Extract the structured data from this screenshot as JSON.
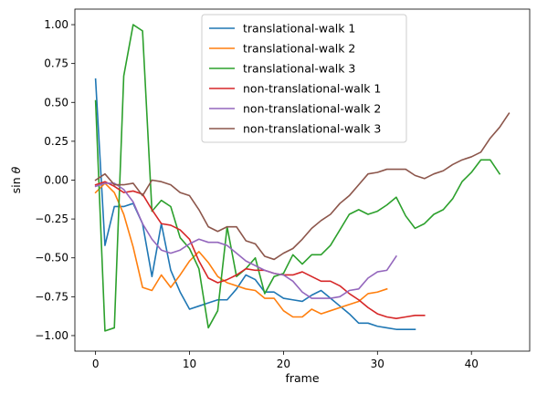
{
  "chart_data": {
    "type": "line",
    "title": "",
    "xlabel": "frame",
    "ylabel_main": "sin",
    "ylabel_symbol": "θ",
    "xlim": [
      -2.2,
      46.2
    ],
    "ylim": [
      -1.1,
      1.1
    ],
    "xticks": [
      0,
      10,
      20,
      30,
      40
    ],
    "yticks": [
      -1.0,
      -0.75,
      -0.5,
      -0.25,
      0.0,
      0.25,
      0.5,
      0.75,
      1.0
    ],
    "ytick_labels": [
      "−1.00",
      "−0.75",
      "−0.50",
      "−0.25",
      "0.00",
      "0.25",
      "0.50",
      "0.75",
      "1.00"
    ],
    "grid": false,
    "legend_position": "top-center",
    "series": [
      {
        "name": "translational-walk 1",
        "color": "#1f77b4",
        "x": [
          0,
          1,
          2,
          3,
          4,
          5,
          6,
          7,
          8,
          9,
          10,
          11,
          12,
          13,
          14,
          15,
          16,
          17,
          18,
          19,
          20,
          21,
          22,
          23,
          24,
          25,
          26,
          27,
          28,
          29,
          30,
          31,
          32,
          33,
          34
        ],
        "y": [
          0.65,
          -0.42,
          -0.17,
          -0.17,
          -0.15,
          -0.28,
          -0.62,
          -0.28,
          -0.58,
          -0.72,
          -0.83,
          -0.81,
          -0.79,
          -0.77,
          -0.77,
          -0.7,
          -0.61,
          -0.64,
          -0.72,
          -0.72,
          -0.76,
          -0.77,
          -0.78,
          -0.74,
          -0.71,
          -0.76,
          -0.81,
          -0.86,
          -0.92,
          -0.92,
          -0.94,
          -0.95,
          -0.96,
          -0.96,
          -0.96
        ]
      },
      {
        "name": "translational-walk 2",
        "color": "#ff7f0e",
        "x": [
          0,
          1,
          2,
          3,
          4,
          5,
          6,
          7,
          8,
          9,
          10,
          11,
          12,
          13,
          14,
          15,
          16,
          17,
          18,
          19,
          20,
          21,
          22,
          23,
          24,
          25,
          26,
          27,
          28,
          29,
          30,
          31
        ],
        "y": [
          -0.08,
          -0.02,
          -0.08,
          -0.22,
          -0.43,
          -0.69,
          -0.71,
          -0.61,
          -0.69,
          -0.61,
          -0.52,
          -0.46,
          -0.53,
          -0.62,
          -0.66,
          -0.68,
          -0.7,
          -0.71,
          -0.76,
          -0.76,
          -0.84,
          -0.88,
          -0.88,
          -0.83,
          -0.86,
          -0.84,
          -0.82,
          -0.8,
          -0.78,
          -0.73,
          -0.72,
          -0.7
        ]
      },
      {
        "name": "translational-walk 3",
        "color": "#2ca02c",
        "x": [
          0,
          1,
          2,
          3,
          4,
          5,
          6,
          7,
          8,
          9,
          10,
          11,
          12,
          13,
          14,
          15,
          16,
          17,
          18,
          19,
          20,
          21,
          22,
          23,
          24,
          25,
          26,
          27,
          28,
          29,
          30,
          31,
          32,
          33,
          34,
          35,
          36,
          37,
          38,
          39,
          40,
          41,
          42,
          43
        ],
        "y": [
          0.51,
          -0.97,
          -0.95,
          0.67,
          1.0,
          0.96,
          -0.2,
          -0.13,
          -0.17,
          -0.37,
          -0.44,
          -0.57,
          -0.95,
          -0.84,
          -0.3,
          -0.62,
          -0.57,
          -0.5,
          -0.73,
          -0.62,
          -0.6,
          -0.48,
          -0.54,
          -0.48,
          -0.48,
          -0.42,
          -0.32,
          -0.22,
          -0.19,
          -0.22,
          -0.2,
          -0.16,
          -0.11,
          -0.23,
          -0.31,
          -0.28,
          -0.22,
          -0.19,
          -0.12,
          -0.01,
          0.05,
          0.13,
          0.13,
          0.04
        ]
      },
      {
        "name": "non-translational-walk 1",
        "color": "#d62728",
        "x": [
          0,
          1,
          2,
          3,
          4,
          5,
          6,
          7,
          8,
          9,
          10,
          11,
          12,
          13,
          14,
          15,
          16,
          17,
          18,
          19,
          20,
          21,
          22,
          23,
          24,
          25,
          26,
          27,
          28,
          29,
          30,
          31,
          32,
          33,
          34,
          35
        ],
        "y": [
          -0.03,
          -0.01,
          -0.04,
          -0.08,
          -0.07,
          -0.09,
          -0.19,
          -0.28,
          -0.29,
          -0.32,
          -0.38,
          -0.52,
          -0.63,
          -0.66,
          -0.64,
          -0.61,
          -0.57,
          -0.58,
          -0.58,
          -0.6,
          -0.61,
          -0.61,
          -0.59,
          -0.62,
          -0.65,
          -0.65,
          -0.68,
          -0.73,
          -0.77,
          -0.82,
          -0.86,
          -0.88,
          -0.89,
          -0.88,
          -0.87,
          -0.87
        ]
      },
      {
        "name": "non-translational-walk 2",
        "color": "#9467bd",
        "x": [
          0,
          1,
          2,
          3,
          4,
          5,
          6,
          7,
          8,
          9,
          10,
          11,
          12,
          13,
          14,
          15,
          16,
          17,
          18,
          19,
          20,
          21,
          22,
          23,
          24,
          25,
          26,
          27,
          28,
          29,
          30,
          31,
          32
        ],
        "y": [
          -0.04,
          -0.02,
          -0.02,
          -0.06,
          -0.14,
          -0.28,
          -0.38,
          -0.45,
          -0.47,
          -0.45,
          -0.41,
          -0.38,
          -0.4,
          -0.4,
          -0.42,
          -0.47,
          -0.52,
          -0.55,
          -0.58,
          -0.6,
          -0.61,
          -0.65,
          -0.72,
          -0.76,
          -0.76,
          -0.76,
          -0.75,
          -0.71,
          -0.7,
          -0.63,
          -0.59,
          -0.58,
          -0.49
        ]
      },
      {
        "name": "non-translational-walk 3",
        "color": "#8c564b",
        "x": [
          0,
          1,
          2,
          3,
          4,
          5,
          6,
          7,
          8,
          9,
          10,
          11,
          12,
          13,
          14,
          15,
          16,
          17,
          18,
          19,
          20,
          21,
          22,
          23,
          24,
          25,
          26,
          27,
          28,
          29,
          30,
          31,
          32,
          33,
          34,
          35,
          36,
          37,
          38,
          39,
          40,
          41,
          42,
          43,
          44
        ],
        "y": [
          0.0,
          0.04,
          -0.03,
          -0.03,
          -0.02,
          -0.1,
          0.0,
          -0.01,
          -0.03,
          -0.08,
          -0.1,
          -0.19,
          -0.3,
          -0.33,
          -0.3,
          -0.3,
          -0.39,
          -0.41,
          -0.49,
          -0.51,
          -0.47,
          -0.44,
          -0.38,
          -0.31,
          -0.26,
          -0.22,
          -0.15,
          -0.1,
          -0.03,
          0.04,
          0.05,
          0.07,
          0.07,
          0.07,
          0.03,
          0.01,
          0.04,
          0.06,
          0.1,
          0.13,
          0.15,
          0.18,
          0.27,
          0.34,
          0.43
        ]
      }
    ]
  }
}
